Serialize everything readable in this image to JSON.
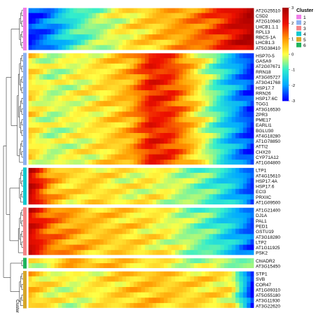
{
  "chart_data": {
    "type": "heatmap",
    "colorscale": [
      "#0000ff",
      "#00aaff",
      "#33eecc",
      "#ffff44",
      "#ff9900",
      "#ee1100",
      "#aa0000"
    ],
    "color_min": -3,
    "color_max": 3,
    "colorbar_ticks": [
      3,
      2,
      1,
      0,
      -1,
      -2,
      -3
    ],
    "legend_title": "Cluster",
    "legend": [
      {
        "label": "1",
        "color": "#f07ee8"
      },
      {
        "label": "2",
        "color": "#8db1f0"
      },
      {
        "label": "3",
        "color": "#f48487"
      },
      {
        "label": "4",
        "color": "#11c8cf"
      },
      {
        "label": "5",
        "color": "#d7a72a"
      },
      {
        "label": "6",
        "color": "#1fb45c"
      }
    ],
    "groups": [
      {
        "cluster": "1",
        "genes": [
          "AT2G25510",
          "CSD2",
          "AT2G10940",
          "LHCB1.1.1",
          "RPL13",
          "RBCS-1A",
          "LHCB1.3",
          "AT5G38410"
        ],
        "profile": [
          -2.8,
          -2.2,
          -1.2,
          -0.6,
          -0.2,
          0.2,
          0.5,
          0.8,
          1.1,
          1.5,
          2.2,
          2.9
        ]
      },
      {
        "cluster": "2",
        "genes": [
          "HSP70-5",
          "GASA9",
          "AT2G07671",
          "RRN18",
          "AT3G05727",
          "AT3G41768",
          "HSP17.7",
          "RRN26",
          "HSP17.6C",
          "TGG1",
          "AT3G16530",
          "ZPR3",
          "PME17",
          "EARLI1",
          "BGLU30",
          "AT4G18280",
          "AT1G78850",
          "ATTI2",
          "CHX20",
          "CYP71A12",
          "AT1G04800"
        ],
        "profile": [
          0.3,
          -0.3,
          -0.1,
          0.1,
          0.4,
          0.8,
          2.0,
          1.7,
          0.6,
          -0.6,
          -1.8,
          -2.8
        ]
      },
      {
        "cluster": "4",
        "genes": [
          "LTP1",
          "AT4G15610",
          "HSP17.4A",
          "HSP17.6",
          "ECI3",
          "PRXIIC",
          "AT1G09500"
        ],
        "profile": [
          2.6,
          0.9,
          0.3,
          0.4,
          0.2,
          0.0,
          0.1,
          -0.2,
          -0.5,
          -0.9,
          -1.6,
          -2.6
        ]
      },
      {
        "cluster": "3",
        "genes": [
          "AT1G21400",
          "DJ1A",
          "PAL1",
          "PED1",
          "GSTU19",
          "AT3G18280",
          "LTP2",
          "AT1G11925",
          "PSK2"
        ],
        "profile": [
          2.4,
          1.3,
          0.9,
          0.6,
          0.5,
          0.4,
          0.2,
          -0.1,
          -0.5,
          -0.9,
          -1.6,
          -2.5
        ]
      },
      {
        "cluster": "6",
        "genes": [
          "ChlADR2",
          "AT3G15450"
        ],
        "profile": [
          -0.1,
          0.2,
          0.9,
          0.7,
          0.5,
          0.4,
          0.3,
          0.0,
          -0.2,
          -0.4,
          -0.5,
          -0.7
        ]
      },
      {
        "cluster": "5",
        "genes": [
          "STP1",
          "SVB",
          "COR47",
          "AT1G09310",
          "AT5G55180",
          "AT3G11930",
          "AT3G22620"
        ],
        "profile": [
          0.6,
          0.1,
          -0.1,
          0.1,
          0.3,
          0.5,
          0.6,
          0.5,
          0.4,
          0.3,
          0.1,
          -2.9
        ]
      }
    ],
    "axis_label": "Cluster"
  }
}
